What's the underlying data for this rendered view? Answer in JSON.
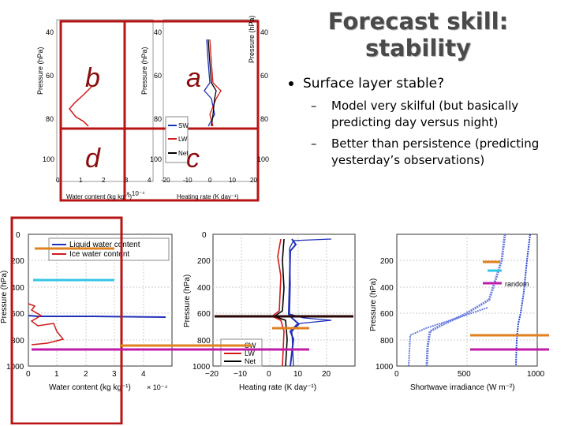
{
  "slide": {
    "title_line1": "Forecast skill:",
    "title_line2": "stability",
    "bullet": "Surface layer stable?",
    "sub_bullets": [
      "Model very skilful (but basically predicting day versus night)",
      "Better than persistence (predicting yesterday’s observations)"
    ],
    "sub_dash": "–"
  },
  "small_figure": {
    "panel_letters": [
      "b",
      "a",
      "d",
      "c"
    ],
    "left_ylabel": "Pressure (hPa)",
    "mid_ylabel": "Pressure (hPa)",
    "right_ylabel": "Pressure (hPa)",
    "left_yticks": [
      "40",
      "60",
      "80",
      "100"
    ],
    "mid_yticks": [
      "40",
      "60",
      "80",
      "100"
    ],
    "right_yticks": [
      "40",
      "60",
      "80",
      "100"
    ],
    "left_xticks": [
      "0",
      "1",
      "2",
      "3",
      "4"
    ],
    "mid_xticks": [
      "-20",
      "-10",
      "0",
      "10",
      "20"
    ],
    "left_xlabel": "Water content (kg kg⁻¹)",
    "left_xexp": "× 10⁻⁴",
    "mid_xlabel": "Heating rate (K day⁻¹)",
    "legend": [
      "SW",
      "LW",
      "Net"
    ]
  },
  "large_figure": {
    "left_ylabel": "Pressure (hPa)",
    "left_yticks": [
      "0",
      "200",
      "400",
      "600",
      "800",
      "1000"
    ],
    "left_xticks": [
      "0",
      "1",
      "2",
      "3",
      "4"
    ],
    "left_xlabel": "Water content (kg kg⁻¹)",
    "left_xexp": "× 10⁻⁴",
    "legend_left": [
      "Liquid water content",
      "Ice water content"
    ],
    "mid_ylabel": "Pressure (hPa)",
    "mid_yticks": [
      "0",
      "200",
      "400",
      "600",
      "800",
      "1000"
    ],
    "mid_xticks": [
      "−20",
      "−10",
      "0",
      "10",
      "20"
    ],
    "mid_xlabel": "Heating rate (K day⁻¹)",
    "legend_mid": [
      "SW",
      "LW",
      "Net"
    ],
    "right_ylabel": "Pressure (hPa)",
    "right_yticks": [
      "200",
      "400",
      "600",
      "800",
      "1000"
    ],
    "right_xticks": [
      "0",
      "500",
      "1000"
    ],
    "right_xlabel": "Shortwave irradiance (W m⁻²)",
    "random_label": "random"
  },
  "colors": {
    "frame_red": "#b81414",
    "orange": "#e0801e",
    "cyan": "#33c6e6",
    "magenta": "#c01aa8",
    "blue": "#1f2fb8",
    "red": "#d21a1a"
  }
}
